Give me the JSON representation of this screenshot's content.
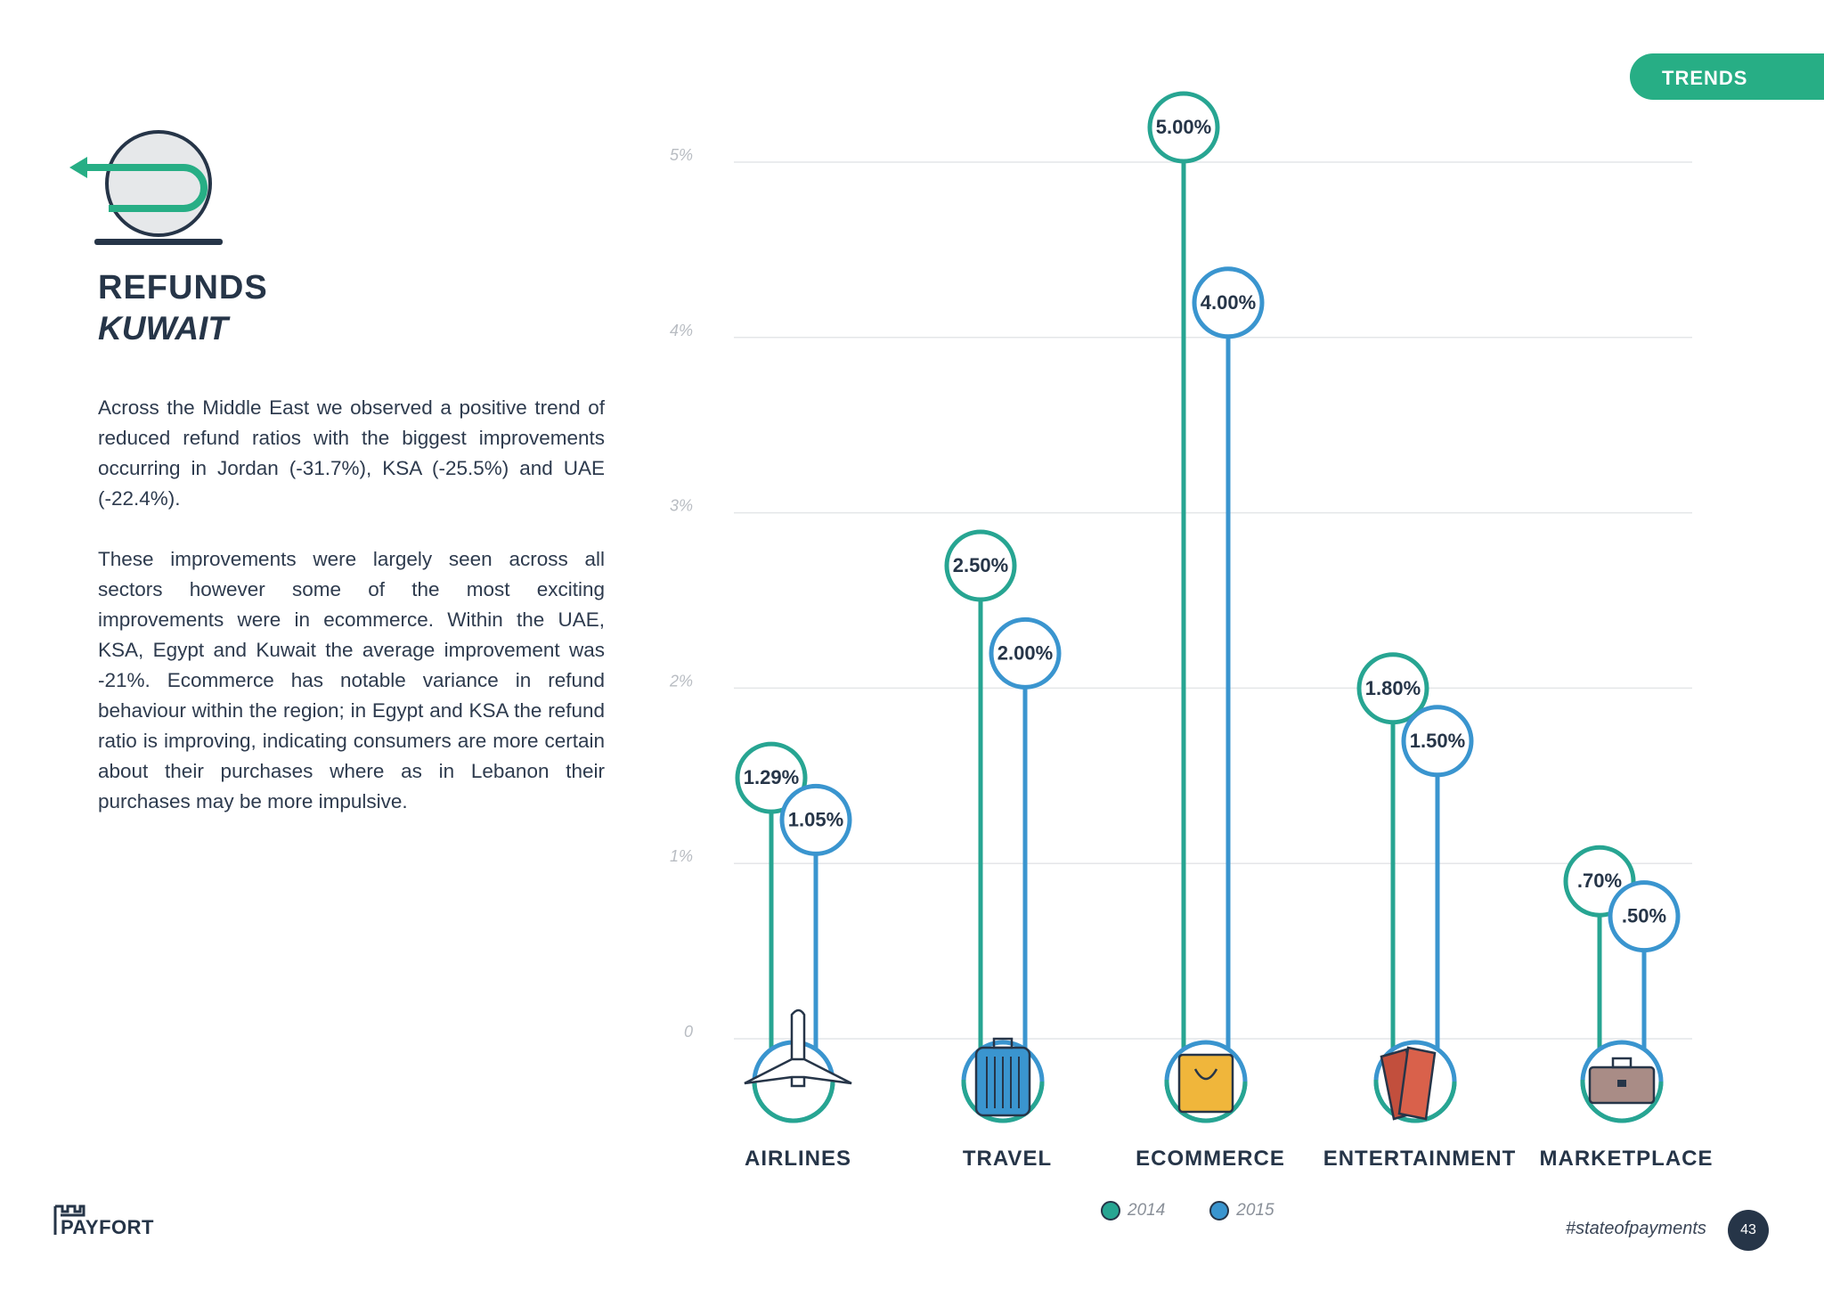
{
  "header": {
    "section_tab": "TRENDS"
  },
  "title": {
    "main": "REFUNDS",
    "sub": "KUWAIT"
  },
  "body": {
    "paragraph1": "Across the Middle East we observed a positive trend of reduced refund ratios with the biggest improvements occurring in Jordan (-31.7%), KSA (-25.5%) and UAE (-22.4%).",
    "paragraph2": "These improvements were largely seen across all sectors however some of the most exciting improvements were in ecommerce. Within the UAE, KSA, Egypt and Kuwait the average improvement was -21%. Ecommerce has notable variance in refund behaviour within the region; in Egypt and KSA the refund ratio is improving, indicating consumers are more certain about their purchases where as in Lebanon their purchases may be more impulsive."
  },
  "chart_data": {
    "type": "bar",
    "categories": [
      "AIRLINES",
      "TRAVEL",
      "ECOMMERCE",
      "ENTERTAINMENT",
      "MARKETPLACE"
    ],
    "category_icons": [
      "airplane-icon",
      "suitcase-icon",
      "shopping-bag-icon",
      "tickets-icon",
      "briefcase-icon"
    ],
    "series": [
      {
        "name": "2014",
        "color": "#27a592",
        "values": [
          1.29,
          2.5,
          5.0,
          1.8,
          0.7
        ],
        "labels": [
          "1.29%",
          "2.50%",
          "5.00%",
          "1.80%",
          ".70%"
        ]
      },
      {
        "name": "2015",
        "color": "#3a95cf",
        "values": [
          1.05,
          2.0,
          4.0,
          1.5,
          0.5
        ],
        "labels": [
          "1.05%",
          "2.00%",
          "4.00%",
          "1.50%",
          ".50%"
        ]
      }
    ],
    "yticks": [
      "0",
      "1%",
      "2%",
      "3%",
      "4%",
      "5%"
    ],
    "ylim": [
      0,
      5
    ],
    "grid": true,
    "legend": "bottom"
  },
  "footer": {
    "brand": "PAYFORT",
    "hashtag": "#stateofpayments",
    "page_number": "43"
  }
}
